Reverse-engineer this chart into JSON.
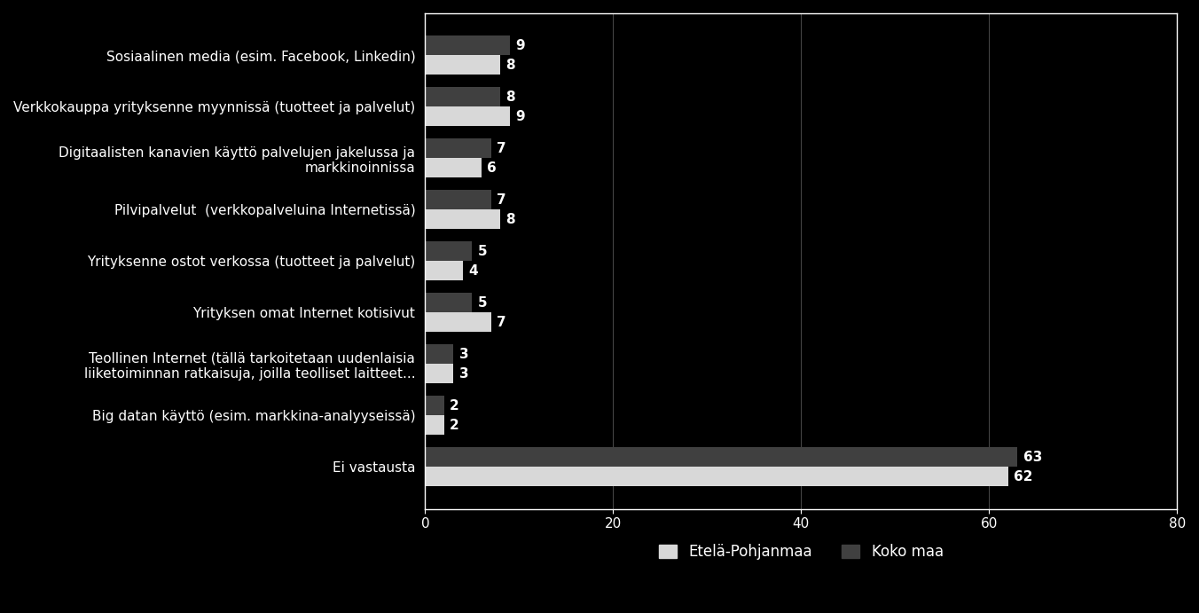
{
  "categories": [
    "Sosiaalinen media (esim. Facebook, Linkedin)",
    "Verkkokauppa yrityksenne myynnissä (tuotteet ja palvelut)",
    "Digitaalisten kanavien käyttö palvelujen jakelussa ja\nmarkkinoinnissa",
    "Pilvipalvelut  (verkkopalveluina Internetissä)",
    "Yrityksenne ostot verkossa (tuotteet ja palvelut)",
    "Yrityksen omat Internet kotisivut",
    "Teollinen Internet (tällä tarkoitetaan uudenlaisia\nliiketoiminnan ratkaisuja, joilla teolliset laitteet...",
    "Big datan käyttö (esim. markkina-analyyseissä)",
    "Ei vastausta"
  ],
  "etela_pohjanmaa": [
    8,
    9,
    6,
    8,
    4,
    7,
    3,
    2,
    62
  ],
  "koko_maa": [
    9,
    8,
    7,
    7,
    5,
    5,
    3,
    2,
    63
  ],
  "background_color": "#000000",
  "text_color": "#ffffff",
  "etela_color": "#d8d8d8",
  "koko_color": "#404040",
  "xlim": [
    0,
    80
  ],
  "xticks": [
    0,
    20,
    40,
    60,
    80
  ],
  "legend_labels": [
    "Etelä-Pohjanmaa",
    "Koko maa"
  ],
  "bar_height": 0.38,
  "font_size_labels": 11,
  "font_size_values": 11,
  "font_size_ticks": 11,
  "font_size_legend": 12
}
